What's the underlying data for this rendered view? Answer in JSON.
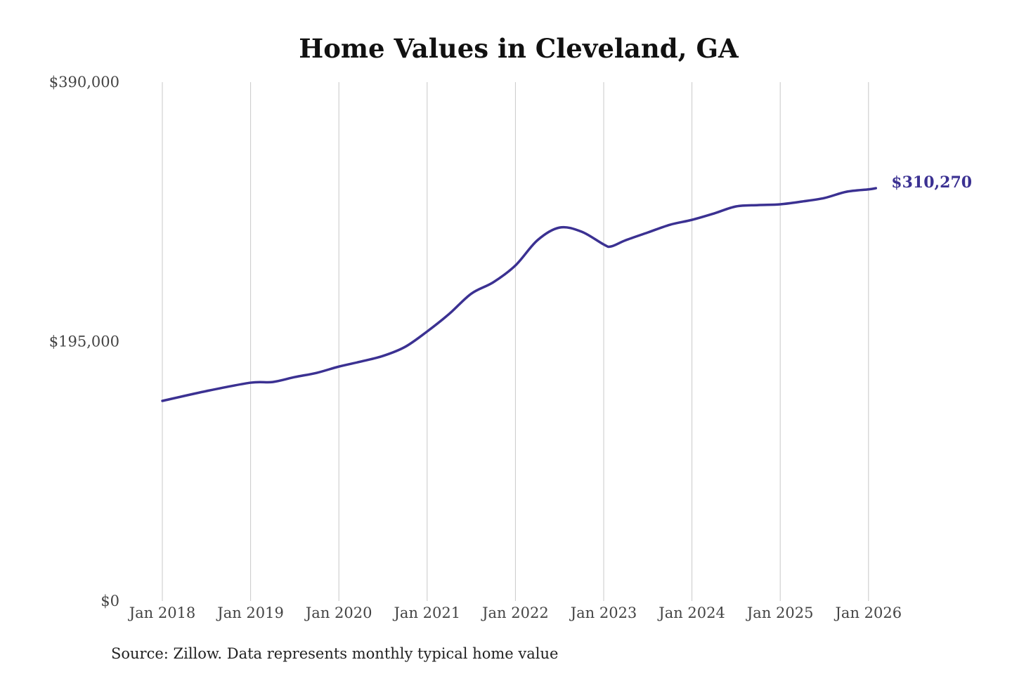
{
  "colors": {
    "line": "#3b3192",
    "grid": "#c8c8c8",
    "end_label": "#3b3192"
  },
  "chart_data": {
    "type": "line",
    "title": "Home Values in Cleveland, GA",
    "source": "Source: Zillow. Data represents monthly typical home value",
    "xlabel": "",
    "ylabel": "",
    "ylim": [
      0,
      390000
    ],
    "y_ticks": [
      {
        "value": 0,
        "label": "$0"
      },
      {
        "value": 195000,
        "label": "$195,000"
      },
      {
        "value": 390000,
        "label": "$390,000"
      }
    ],
    "x_ticks": [
      {
        "value": "2018-01",
        "label": "Jan 2018"
      },
      {
        "value": "2019-01",
        "label": "Jan 2019"
      },
      {
        "value": "2020-01",
        "label": "Jan 2020"
      },
      {
        "value": "2021-01",
        "label": "Jan 2021"
      },
      {
        "value": "2022-01",
        "label": "Jan 2022"
      },
      {
        "value": "2023-01",
        "label": "Jan 2023"
      },
      {
        "value": "2024-01",
        "label": "Jan 2024"
      },
      {
        "value": "2025-01",
        "label": "Jan 2025"
      },
      {
        "value": "2026-01",
        "label": "Jan 2026"
      }
    ],
    "grid": "vertical",
    "end_label": "$310,270",
    "series": [
      {
        "x": [
          "2018-01",
          "2018-07",
          "2019-01",
          "2019-04",
          "2019-07",
          "2019-10",
          "2020-01",
          "2020-04",
          "2020-07",
          "2020-10",
          "2021-01",
          "2021-04",
          "2021-07",
          "2021-10",
          "2022-01",
          "2022-04",
          "2022-07",
          "2022-10",
          "2023-01",
          "2023-02",
          "2023-04",
          "2023-07",
          "2023-10",
          "2024-01",
          "2024-04",
          "2024-07",
          "2024-10",
          "2025-01",
          "2025-04",
          "2025-07",
          "2025-10",
          "2026-01",
          "2026-02"
        ],
        "y": [
          150400,
          157800,
          164100,
          164600,
          168300,
          171500,
          176200,
          180000,
          184200,
          191000,
          202600,
          215800,
          231000,
          239600,
          252200,
          271200,
          280700,
          277600,
          268000,
          266500,
          271200,
          277000,
          282800,
          286500,
          291300,
          296600,
          297600,
          298200,
          300300,
          302900,
          307600,
          309400,
          310270
        ]
      }
    ]
  }
}
